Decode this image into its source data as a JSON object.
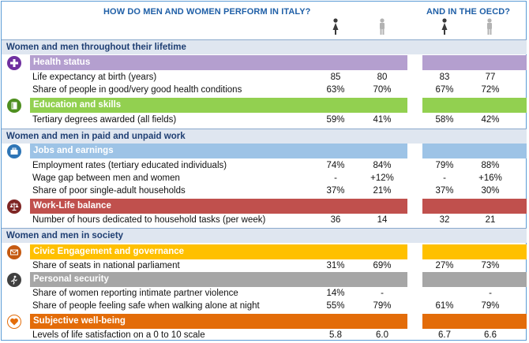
{
  "header": {
    "italy_title": "HOW DO MEN AND WOMEN PERFORM IN ITALY?",
    "oecd_title": "AND IN THE OECD?"
  },
  "colors": {
    "title": "#1f5fa7",
    "health": "#b49fcf",
    "education": "#92d050",
    "jobs": "#9dc3e6",
    "work_life": "#c0504d",
    "civic": "#ffc000",
    "security": "#a6a6a6",
    "wellbeing": "#e36c09"
  },
  "sections": {
    "lifetime": "Women and men throughout their lifetime",
    "work": "Women and men in paid and unpaid work",
    "society": "Women and men in society"
  },
  "categories": {
    "health": "Health status",
    "education": "Education and skills",
    "jobs": "Jobs and earnings",
    "work_life": "Work-Life balance",
    "civic": "Civic Engagement and governance",
    "security": "Personal security",
    "wellbeing": "Subjective well-being"
  },
  "icons": {
    "woman": "woman-icon",
    "man": "man-icon",
    "health": "plus-icon",
    "education": "book-icon",
    "jobs": "briefcase-icon",
    "work_life": "scales-icon",
    "civic": "envelope-icon",
    "security": "runner-icon",
    "wellbeing": "heart-icon"
  },
  "rows": {
    "life_expectancy": {
      "label": "Life expectancy at birth (years)",
      "it_w": "85",
      "it_m": "80",
      "oecd_w": "83",
      "oecd_m": "77"
    },
    "good_health": {
      "label": "Share of people in good/very good health conditions",
      "it_w": "63%",
      "it_m": "70%",
      "oecd_w": "67%",
      "oecd_m": "72%"
    },
    "tertiary": {
      "label": "Tertiary degrees awarded (all fields)",
      "it_w": "59%",
      "it_m": "41%",
      "oecd_w": "58%",
      "oecd_m": "42%"
    },
    "employment": {
      "label": "Employment rates (tertiary educated individuals)",
      "it_w": "74%",
      "it_m": "84%",
      "oecd_w": "79%",
      "oecd_m": "88%"
    },
    "wage_gap": {
      "label": "Wage gap between men and women",
      "it_w": "-",
      "it_m": "+12%",
      "oecd_w": "-",
      "oecd_m": "+16%"
    },
    "poor_single": {
      "label": "Share of poor single-adult households",
      "it_w": "37%",
      "it_m": "21%",
      "oecd_w": "37%",
      "oecd_m": "30%"
    },
    "household_tasks": {
      "label": "Number of hours dedicated to household tasks (per week)",
      "it_w": "36",
      "it_m": "14",
      "oecd_w": "32",
      "oecd_m": "21"
    },
    "parliament": {
      "label": "Share of seats in national parliament",
      "it_w": "31%",
      "it_m": "69%",
      "oecd_w": "27%",
      "oecd_m": "73%"
    },
    "partner_violence": {
      "label": "Share of women reporting intimate partner violence",
      "it_w": "14%",
      "it_m": "-",
      "oecd_w": "",
      "oecd_m": "-"
    },
    "safe_night": {
      "label": "Share of people feeling safe when walking alone at night",
      "it_w": "55%",
      "it_m": "79%",
      "oecd_w": "61%",
      "oecd_m": "79%"
    },
    "life_satisfaction": {
      "label": "Levels of life satisfaction on a 0 to 10 scale",
      "it_w": "5.8",
      "it_m": "6.0",
      "oecd_w": "6.7",
      "oecd_m": "6.6"
    }
  }
}
